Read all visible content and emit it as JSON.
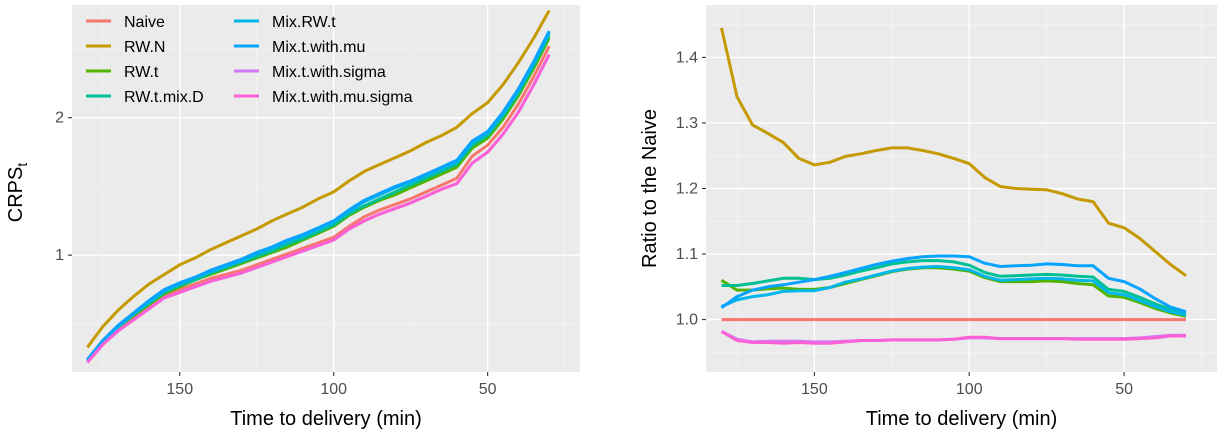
{
  "chart_data": [
    {
      "type": "line",
      "xlabel": "Time to delivery (min)",
      "ylabel_main": "CRPS",
      "ylabel_sub": "t",
      "x_reversed": true,
      "xlim": [
        185,
        20
      ],
      "ylim": [
        0.15,
        2.82
      ],
      "xticks": [
        150,
        100,
        50
      ],
      "yticks": [
        1,
        2
      ],
      "grid": true,
      "legend_position": "top-left, two columns",
      "x": [
        180,
        175,
        170,
        165,
        160,
        155,
        150,
        145,
        140,
        135,
        130,
        125,
        120,
        115,
        110,
        105,
        100,
        95,
        90,
        85,
        80,
        75,
        70,
        65,
        60,
        55,
        50,
        45,
        40,
        35,
        30
      ],
      "series": [
        {
          "name": "Naive",
          "color": "#F8766D",
          "values": [
            0.23,
            0.36,
            0.46,
            0.54,
            0.62,
            0.7,
            0.75,
            0.79,
            0.83,
            0.86,
            0.89,
            0.93,
            0.97,
            1.01,
            1.05,
            1.09,
            1.13,
            1.21,
            1.28,
            1.33,
            1.37,
            1.41,
            1.46,
            1.51,
            1.56,
            1.72,
            1.8,
            1.93,
            2.1,
            2.3,
            2.52
          ]
        },
        {
          "name": "RW.N",
          "color": "#C49A00",
          "values": [
            0.33,
            0.48,
            0.6,
            0.7,
            0.79,
            0.86,
            0.93,
            0.98,
            1.04,
            1.09,
            1.14,
            1.19,
            1.25,
            1.3,
            1.35,
            1.41,
            1.46,
            1.54,
            1.61,
            1.66,
            1.71,
            1.76,
            1.82,
            1.87,
            1.93,
            2.03,
            2.11,
            2.24,
            2.4,
            2.58,
            2.78
          ]
        },
        {
          "name": "RW.t",
          "color": "#53B400",
          "values": [
            0.24,
            0.37,
            0.47,
            0.56,
            0.64,
            0.72,
            0.77,
            0.82,
            0.86,
            0.9,
            0.94,
            0.98,
            1.02,
            1.06,
            1.11,
            1.16,
            1.21,
            1.29,
            1.35,
            1.4,
            1.44,
            1.49,
            1.54,
            1.59,
            1.64,
            1.78,
            1.85,
            1.99,
            2.16,
            2.36,
            2.58
          ]
        },
        {
          "name": "RW.t.mix.D",
          "color": "#00C094",
          "values": [
            0.24,
            0.37,
            0.48,
            0.57,
            0.65,
            0.73,
            0.78,
            0.82,
            0.87,
            0.91,
            0.95,
            0.99,
            1.03,
            1.08,
            1.12,
            1.17,
            1.22,
            1.3,
            1.36,
            1.41,
            1.46,
            1.51,
            1.56,
            1.61,
            1.66,
            1.8,
            1.87,
            2.01,
            2.18,
            2.38,
            2.6
          ]
        },
        {
          "name": "Mix.RW.t",
          "color": "#00B6EB",
          "values": [
            0.23,
            0.37,
            0.48,
            0.57,
            0.66,
            0.74,
            0.79,
            0.84,
            0.88,
            0.92,
            0.96,
            1.01,
            1.05,
            1.1,
            1.14,
            1.19,
            1.24,
            1.32,
            1.39,
            1.44,
            1.49,
            1.53,
            1.58,
            1.63,
            1.68,
            1.82,
            1.89,
            2.03,
            2.2,
            2.4,
            2.62
          ]
        },
        {
          "name": "Mix.t.with.mu",
          "color": "#06A4FF",
          "values": [
            0.24,
            0.38,
            0.49,
            0.58,
            0.67,
            0.75,
            0.8,
            0.84,
            0.89,
            0.93,
            0.97,
            1.02,
            1.06,
            1.11,
            1.15,
            1.2,
            1.25,
            1.33,
            1.4,
            1.45,
            1.5,
            1.54,
            1.59,
            1.64,
            1.69,
            1.83,
            1.9,
            2.04,
            2.21,
            2.41,
            2.63
          ]
        },
        {
          "name": "Mix.t.with.sigma",
          "color": "#D078F5",
          "values": [
            0.22,
            0.35,
            0.45,
            0.53,
            0.61,
            0.69,
            0.73,
            0.77,
            0.81,
            0.84,
            0.87,
            0.91,
            0.95,
            0.99,
            1.03,
            1.07,
            1.11,
            1.19,
            1.25,
            1.3,
            1.34,
            1.38,
            1.43,
            1.48,
            1.52,
            1.67,
            1.75,
            1.88,
            2.04,
            2.24,
            2.46
          ]
        },
        {
          "name": "Mix.t.with.mu.sigma",
          "color": "#FB61D7",
          "values": [
            0.22,
            0.35,
            0.45,
            0.53,
            0.61,
            0.69,
            0.73,
            0.77,
            0.81,
            0.84,
            0.87,
            0.91,
            0.95,
            0.99,
            1.03,
            1.07,
            1.11,
            1.19,
            1.25,
            1.3,
            1.34,
            1.38,
            1.43,
            1.48,
            1.52,
            1.67,
            1.75,
            1.88,
            2.04,
            2.24,
            2.46
          ]
        }
      ]
    },
    {
      "type": "line",
      "xlabel": "Time to delivery (min)",
      "ylabel": "Ratio to the Naive",
      "x_reversed": true,
      "xlim": [
        185,
        20
      ],
      "ylim": [
        0.92,
        1.48
      ],
      "xticks": [
        150,
        100,
        50
      ],
      "yticks": [
        1.0,
        1.1,
        1.2,
        1.3,
        1.4
      ],
      "ytick_labels": [
        "1.0",
        "1.1",
        "1.2",
        "1.3",
        "1.4"
      ],
      "grid": true,
      "x": [
        180,
        175,
        170,
        165,
        160,
        155,
        150,
        145,
        140,
        135,
        130,
        125,
        120,
        115,
        110,
        105,
        100,
        95,
        90,
        85,
        80,
        75,
        70,
        65,
        60,
        55,
        50,
        45,
        40,
        35,
        30
      ],
      "series": [
        {
          "name": "Naive",
          "color": "#F8766D",
          "values": [
            1.0,
            1.0,
            1.0,
            1.0,
            1.0,
            1.0,
            1.0,
            1.0,
            1.0,
            1.0,
            1.0,
            1.0,
            1.0,
            1.0,
            1.0,
            1.0,
            1.0,
            1.0,
            1.0,
            1.0,
            1.0,
            1.0,
            1.0,
            1.0,
            1.0,
            1.0,
            1.0,
            1.0,
            1.0,
            1.0,
            1.0
          ]
        },
        {
          "name": "RW.N",
          "color": "#C49A00",
          "values": [
            1.445,
            1.34,
            1.297,
            1.284,
            1.27,
            1.246,
            1.236,
            1.24,
            1.249,
            1.253,
            1.258,
            1.262,
            1.262,
            1.258,
            1.253,
            1.246,
            1.238,
            1.217,
            1.203,
            1.2,
            1.199,
            1.198,
            1.192,
            1.184,
            1.18,
            1.147,
            1.14,
            1.124,
            1.104,
            1.084,
            1.067
          ]
        },
        {
          "name": "RW.t",
          "color": "#53B400",
          "values": [
            1.06,
            1.045,
            1.045,
            1.047,
            1.048,
            1.046,
            1.046,
            1.049,
            1.055,
            1.061,
            1.067,
            1.073,
            1.077,
            1.079,
            1.079,
            1.077,
            1.074,
            1.064,
            1.058,
            1.058,
            1.058,
            1.059,
            1.058,
            1.055,
            1.053,
            1.036,
            1.034,
            1.026,
            1.017,
            1.01,
            1.005
          ]
        },
        {
          "name": "RW.t.mix.D",
          "color": "#00C094",
          "values": [
            1.052,
            1.052,
            1.055,
            1.059,
            1.063,
            1.063,
            1.061,
            1.063,
            1.068,
            1.074,
            1.079,
            1.085,
            1.088,
            1.09,
            1.09,
            1.088,
            1.083,
            1.072,
            1.066,
            1.067,
            1.068,
            1.069,
            1.068,
            1.066,
            1.065,
            1.046,
            1.043,
            1.034,
            1.024,
            1.015,
            1.009
          ]
        },
        {
          "name": "Mix.RW.t",
          "color": "#00B6EB",
          "values": [
            1.02,
            1.03,
            1.035,
            1.038,
            1.043,
            1.044,
            1.044,
            1.049,
            1.057,
            1.062,
            1.068,
            1.074,
            1.078,
            1.08,
            1.081,
            1.079,
            1.076,
            1.066,
            1.06,
            1.061,
            1.062,
            1.063,
            1.062,
            1.06,
            1.059,
            1.041,
            1.038,
            1.029,
            1.02,
            1.012,
            1.007
          ]
        },
        {
          "name": "Mix.t.with.mu",
          "color": "#06A4FF",
          "values": [
            1.018,
            1.035,
            1.045,
            1.05,
            1.053,
            1.057,
            1.061,
            1.066,
            1.072,
            1.078,
            1.084,
            1.089,
            1.093,
            1.096,
            1.097,
            1.097,
            1.096,
            1.086,
            1.081,
            1.082,
            1.083,
            1.085,
            1.084,
            1.082,
            1.082,
            1.063,
            1.058,
            1.047,
            1.032,
            1.019,
            1.012
          ]
        },
        {
          "name": "Mix.t.with.sigma",
          "color": "#D078F5",
          "values": [
            0.982,
            0.97,
            0.966,
            0.967,
            0.967,
            0.967,
            0.966,
            0.966,
            0.967,
            0.968,
            0.968,
            0.969,
            0.969,
            0.969,
            0.969,
            0.97,
            0.972,
            0.972,
            0.971,
            0.971,
            0.971,
            0.971,
            0.971,
            0.971,
            0.971,
            0.971,
            0.971,
            0.972,
            0.974,
            0.976,
            0.976
          ]
        },
        {
          "name": "Mix.t.with.mu.sigma",
          "color": "#FB61D7",
          "values": [
            0.982,
            0.968,
            0.965,
            0.965,
            0.964,
            0.965,
            0.964,
            0.964,
            0.966,
            0.968,
            0.968,
            0.969,
            0.969,
            0.969,
            0.969,
            0.97,
            0.973,
            0.973,
            0.971,
            0.971,
            0.971,
            0.971,
            0.971,
            0.97,
            0.97,
            0.97,
            0.97,
            0.971,
            0.972,
            0.975,
            0.975
          ]
        }
      ]
    }
  ]
}
